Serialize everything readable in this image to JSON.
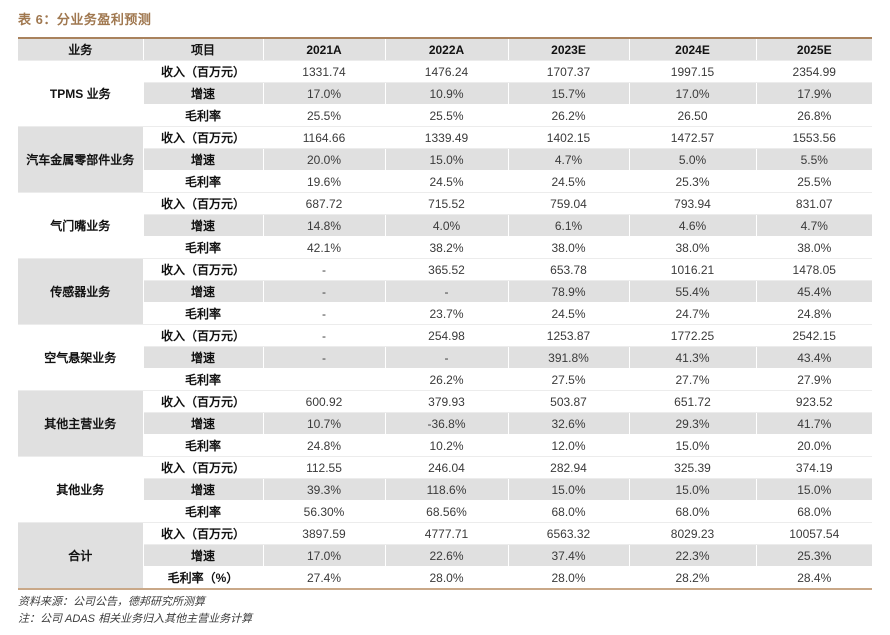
{
  "title": "表 6：分业务盈利预测",
  "colors": {
    "title_brown": "#a07850",
    "table_top_border": "#a9825d",
    "table_bottom_border": "#c9a888",
    "row_gray": "#e0e0e0"
  },
  "table": {
    "headers": [
      "业务",
      "项目",
      "2021A",
      "2022A",
      "2023E",
      "2024E",
      "2025E"
    ],
    "segments": [
      {
        "name": "TPMS 业务",
        "rows": [
          {
            "item": "收入（百万元）",
            "values": [
              "1331.74",
              "1476.24",
              "1707.37",
              "1997.15",
              "2354.99"
            ]
          },
          {
            "item": "增速",
            "values": [
              "17.0%",
              "10.9%",
              "15.7%",
              "17.0%",
              "17.9%"
            ]
          },
          {
            "item": "毛利率",
            "values": [
              "25.5%",
              "25.5%",
              "26.2%",
              "26.50",
              "26.8%"
            ]
          }
        ]
      },
      {
        "name": "汽车金属零部件业务",
        "rows": [
          {
            "item": "收入（百万元）",
            "values": [
              "1164.66",
              "1339.49",
              "1402.15",
              "1472.57",
              "1553.56"
            ]
          },
          {
            "item": "增速",
            "values": [
              "20.0%",
              "15.0%",
              "4.7%",
              "5.0%",
              "5.5%"
            ]
          },
          {
            "item": "毛利率",
            "values": [
              "19.6%",
              "24.5%",
              "24.5%",
              "25.3%",
              "25.5%"
            ]
          }
        ]
      },
      {
        "name": "气门嘴业务",
        "rows": [
          {
            "item": "收入（百万元）",
            "values": [
              "687.72",
              "715.52",
              "759.04",
              "793.94",
              "831.07"
            ]
          },
          {
            "item": "增速",
            "values": [
              "14.8%",
              "4.0%",
              "6.1%",
              "4.6%",
              "4.7%"
            ]
          },
          {
            "item": "毛利率",
            "values": [
              "42.1%",
              "38.2%",
              "38.0%",
              "38.0%",
              "38.0%"
            ]
          }
        ]
      },
      {
        "name": "传感器业务",
        "rows": [
          {
            "item": "收入（百万元）",
            "values": [
              "-",
              "365.52",
              "653.78",
              "1016.21",
              "1478.05"
            ]
          },
          {
            "item": "增速",
            "values": [
              "-",
              "-",
              "78.9%",
              "55.4%",
              "45.4%"
            ]
          },
          {
            "item": "毛利率",
            "values": [
              "-",
              "23.7%",
              "24.5%",
              "24.7%",
              "24.8%"
            ]
          }
        ]
      },
      {
        "name": "空气悬架业务",
        "rows": [
          {
            "item": "收入（百万元）",
            "values": [
              "-",
              "254.98",
              "1253.87",
              "1772.25",
              "2542.15"
            ]
          },
          {
            "item": "增速",
            "values": [
              "-",
              "-",
              "391.8%",
              "41.3%",
              "43.4%"
            ]
          },
          {
            "item": "毛利率",
            "values": [
              "",
              "26.2%",
              "27.5%",
              "27.7%",
              "27.9%"
            ]
          }
        ]
      },
      {
        "name": "其他主营业务",
        "rows": [
          {
            "item": "收入（百万元）",
            "values": [
              "600.92",
              "379.93",
              "503.87",
              "651.72",
              "923.52"
            ]
          },
          {
            "item": "增速",
            "values": [
              "10.7%",
              "-36.8%",
              "32.6%",
              "29.3%",
              "41.7%"
            ]
          },
          {
            "item": "毛利率",
            "values": [
              "24.8%",
              "10.2%",
              "12.0%",
              "15.0%",
              "20.0%"
            ]
          }
        ]
      },
      {
        "name": "其他业务",
        "rows": [
          {
            "item": "收入（百万元）",
            "values": [
              "112.55",
              "246.04",
              "282.94",
              "325.39",
              "374.19"
            ]
          },
          {
            "item": "增速",
            "values": [
              "39.3%",
              "118.6%",
              "15.0%",
              "15.0%",
              "15.0%"
            ]
          },
          {
            "item": "毛利率",
            "values": [
              "56.30%",
              "68.56%",
              "68.0%",
              "68.0%",
              "68.0%"
            ]
          }
        ]
      },
      {
        "name": "合计",
        "rows": [
          {
            "item": "收入（百万元）",
            "values": [
              "3897.59",
              "4777.71",
              "6563.32",
              "8029.23",
              "10057.54"
            ]
          },
          {
            "item": "增速",
            "values": [
              "17.0%",
              "22.6%",
              "37.4%",
              "22.3%",
              "25.3%"
            ]
          },
          {
            "item": "毛利率（%）",
            "values": [
              "27.4%",
              "28.0%",
              "28.0%",
              "28.2%",
              "28.4%"
            ]
          }
        ]
      }
    ]
  },
  "footer": {
    "source": "资料来源：公司公告，德邦研究所测算",
    "note": "注：公司 ADAS 相关业务归入其他主营业务计算"
  }
}
